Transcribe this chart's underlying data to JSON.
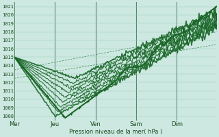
{
  "xlabel": "Pression niveau de la mer( hPa )",
  "ylim": [
    1007.5,
    1021.5
  ],
  "yticks": [
    1008,
    1009,
    1010,
    1011,
    1012,
    1013,
    1014,
    1015,
    1016,
    1017,
    1018,
    1019,
    1020,
    1021
  ],
  "day_labels": [
    "Mer",
    "Jeu",
    "Ven",
    "Sam",
    "Dim"
  ],
  "day_positions": [
    0,
    60,
    120,
    180,
    240
  ],
  "total_points": 300,
  "bg_color": "#cce8e0",
  "grid_color": "#99ccbb",
  "line_color": "#1a6628",
  "dashed_color": "#2a7a38",
  "vline_color": "#336644"
}
